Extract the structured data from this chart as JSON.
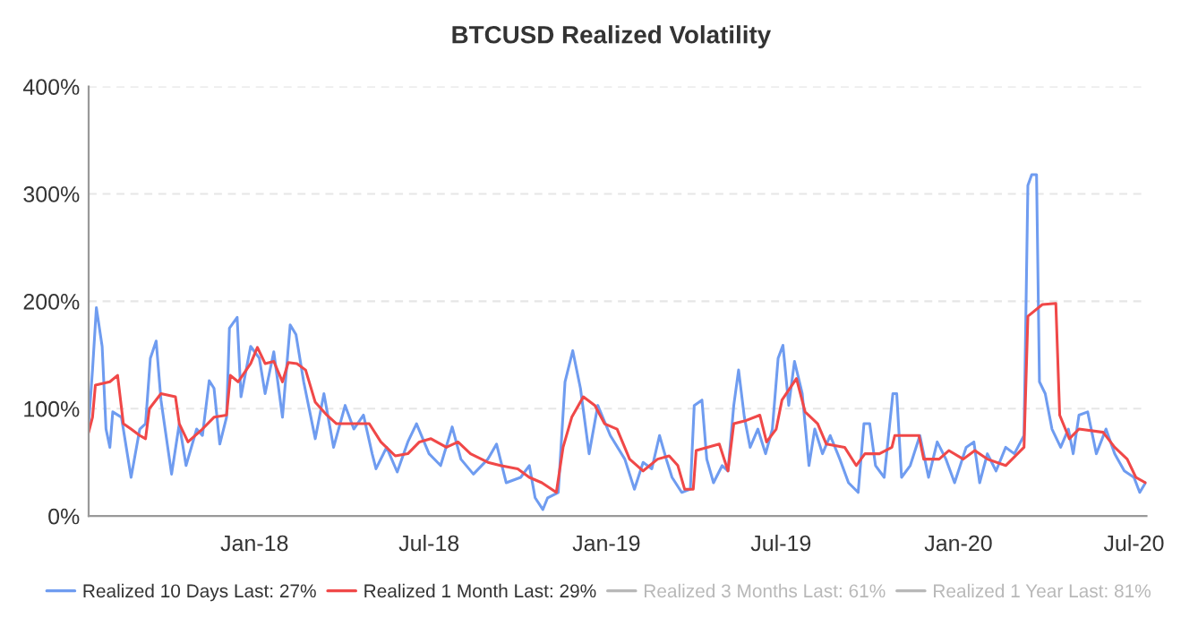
{
  "chart_data": {
    "type": "line",
    "title": "BTCUSD Realized Volatility",
    "xlim": [
      "2017-07-13",
      "2020-07-14"
    ],
    "xticks": [
      {
        "value": "2018-01-01",
        "label": "Jan-18"
      },
      {
        "value": "2018-07-01",
        "label": "Jul-18"
      },
      {
        "value": "2019-01-01",
        "label": "Jan-19"
      },
      {
        "value": "2019-07-01",
        "label": "Jul-19"
      },
      {
        "value": "2020-01-01",
        "label": "Jan-20"
      },
      {
        "value": "2020-07-01",
        "label": "Jul-20"
      }
    ],
    "ylim": [
      0,
      400
    ],
    "yticks": [
      {
        "value": 0,
        "label": "0%"
      },
      {
        "value": 100,
        "label": "100%"
      },
      {
        "value": 200,
        "label": "200%"
      },
      {
        "value": 300,
        "label": "300%"
      },
      {
        "value": 400,
        "label": "400%"
      }
    ],
    "grid": "y",
    "legend": "bottom",
    "line_style": "solid",
    "marker": "none",
    "series": [
      {
        "name": "Realized 10 Days Last: 27%",
        "color": "#6f9cf0",
        "x": [
          "2017-07-13",
          "2017-07-17",
          "2017-07-21",
          "2017-07-27",
          "2017-07-31",
          "2017-08-04",
          "2017-08-07",
          "2017-08-16",
          "2017-08-26",
          "2017-09-04",
          "2017-09-10",
          "2017-09-15",
          "2017-09-21",
          "2017-09-26",
          "2017-10-07",
          "2017-10-15",
          "2017-10-22",
          "2017-11-02",
          "2017-11-08",
          "2017-11-15",
          "2017-11-20",
          "2017-11-26",
          "2017-12-03",
          "2017-12-06",
          "2017-12-14",
          "2017-12-18",
          "2017-12-28",
          "2018-01-06",
          "2018-01-12",
          "2018-01-21",
          "2018-01-30",
          "2018-02-07",
          "2018-02-13",
          "2018-02-21",
          "2018-03-05",
          "2018-03-14",
          "2018-03-24",
          "2018-04-05",
          "2018-04-14",
          "2018-04-24",
          "2018-05-03",
          "2018-05-07",
          "2018-05-18",
          "2018-05-29",
          "2018-06-09",
          "2018-06-18",
          "2018-07-01",
          "2018-07-13",
          "2018-07-25",
          "2018-08-03",
          "2018-08-16",
          "2018-08-31",
          "2018-09-09",
          "2018-09-19",
          "2018-10-04",
          "2018-10-13",
          "2018-10-19",
          "2018-10-27",
          "2018-11-01",
          "2018-11-12",
          "2018-11-19",
          "2018-11-27",
          "2018-12-05",
          "2018-12-14",
          "2018-12-23",
          "2019-01-05",
          "2019-01-20",
          "2019-01-30",
          "2019-02-08",
          "2019-02-17",
          "2019-02-25",
          "2019-03-04",
          "2019-03-10",
          "2019-03-20",
          "2019-03-29",
          "2019-04-02",
          "2019-04-10",
          "2019-04-15",
          "2019-04-22",
          "2019-05-01",
          "2019-05-07",
          "2019-05-13",
          "2019-05-18",
          "2019-05-24",
          "2019-05-30",
          "2019-06-07",
          "2019-06-15",
          "2019-06-22",
          "2019-06-28",
          "2019-07-03",
          "2019-07-09",
          "2019-07-15",
          "2019-07-23",
          "2019-07-30",
          "2019-08-05",
          "2019-08-13",
          "2019-08-21",
          "2019-08-31",
          "2019-09-09",
          "2019-09-19",
          "2019-09-25",
          "2019-10-01",
          "2019-10-07",
          "2019-10-16",
          "2019-10-25",
          "2019-10-29",
          "2019-11-03",
          "2019-11-12",
          "2019-11-22",
          "2019-12-01",
          "2019-12-10",
          "2019-12-19",
          "2019-12-28",
          "2020-01-09",
          "2020-01-17",
          "2020-01-23",
          "2020-01-31",
          "2020-02-09",
          "2020-02-19",
          "2020-02-28",
          "2020-03-09",
          "2020-03-13",
          "2020-03-17",
          "2020-03-22",
          "2020-03-25",
          "2020-03-31",
          "2020-04-07",
          "2020-04-16",
          "2020-04-24",
          "2020-04-29",
          "2020-05-05",
          "2020-05-14",
          "2020-05-23",
          "2020-06-02",
          "2020-06-11",
          "2020-06-21",
          "2020-07-01",
          "2020-07-07",
          "2020-07-13"
        ],
        "values": [
          86,
          136,
          194,
          158,
          81,
          64,
          97,
          92,
          36,
          81,
          86,
          147,
          163,
          108,
          39,
          86,
          47,
          81,
          75,
          126,
          119,
          67,
          92,
          175,
          185,
          111,
          158,
          147,
          114,
          153,
          92,
          178,
          169,
          125,
          72,
          114,
          64,
          103,
          81,
          94,
          58,
          44,
          64,
          41,
          69,
          86,
          58,
          47,
          83,
          53,
          39,
          53,
          67,
          31,
          36,
          47,
          17,
          6,
          17,
          22,
          125,
          154,
          119,
          58,
          103,
          75,
          53,
          25,
          50,
          44,
          75,
          53,
          36,
          22,
          25,
          103,
          108,
          53,
          31,
          47,
          42,
          103,
          136,
          92,
          64,
          81,
          58,
          81,
          147,
          159,
          103,
          144,
          114,
          47,
          81,
          58,
          75,
          53,
          31,
          22,
          86,
          86,
          47,
          36,
          114,
          114,
          36,
          47,
          75,
          36,
          69,
          53,
          31,
          64,
          69,
          31,
          58,
          42,
          64,
          58,
          75,
          308,
          318,
          318,
          125,
          114,
          81,
          64,
          81,
          58,
          94,
          97,
          58,
          81,
          58,
          42,
          36,
          22,
          31
        ]
      },
      {
        "name": "Realized 1 Month Last: 29%",
        "color": "#f04848",
        "x": [
          "2017-07-13",
          "2017-07-17",
          "2017-07-20",
          "2017-08-04",
          "2017-08-12",
          "2017-08-18",
          "2017-08-26",
          "2017-09-04",
          "2017-09-10",
          "2017-09-14",
          "2017-09-26",
          "2017-10-11",
          "2017-10-15",
          "2017-10-24",
          "2017-11-08",
          "2017-11-20",
          "2017-12-03",
          "2017-12-07",
          "2017-12-15",
          "2017-12-28",
          "2018-01-04",
          "2018-01-12",
          "2018-01-21",
          "2018-01-30",
          "2018-02-05",
          "2018-02-14",
          "2018-02-23",
          "2018-03-05",
          "2018-03-17",
          "2018-03-27",
          "2018-04-11",
          "2018-04-30",
          "2018-05-12",
          "2018-05-27",
          "2018-06-09",
          "2018-06-21",
          "2018-07-03",
          "2018-07-19",
          "2018-07-31",
          "2018-08-13",
          "2018-08-31",
          "2018-09-13",
          "2018-10-01",
          "2018-10-13",
          "2018-10-26",
          "2018-11-10",
          "2018-11-17",
          "2018-11-26",
          "2018-12-08",
          "2018-12-20",
          "2018-12-30",
          "2019-01-12",
          "2019-01-25",
          "2019-02-08",
          "2019-02-23",
          "2019-03-07",
          "2019-03-16",
          "2019-03-23",
          "2019-04-01",
          "2019-04-04",
          "2019-04-28",
          "2019-05-07",
          "2019-05-13",
          "2019-05-26",
          "2019-06-09",
          "2019-06-16",
          "2019-06-26",
          "2019-07-02",
          "2019-07-17",
          "2019-07-26",
          "2019-08-08",
          "2019-08-17",
          "2019-09-05",
          "2019-09-17",
          "2019-09-26",
          "2019-10-11",
          "2019-10-24",
          "2019-10-27",
          "2019-11-21",
          "2019-11-26",
          "2019-12-12",
          "2019-12-22",
          "2020-01-06",
          "2020-01-18",
          "2020-01-31",
          "2020-02-19",
          "2020-03-09",
          "2020-03-13",
          "2020-03-28",
          "2020-04-11",
          "2020-04-15",
          "2020-04-25",
          "2020-05-05",
          "2020-05-30",
          "2020-06-11",
          "2020-06-24",
          "2020-07-03",
          "2020-07-13"
        ],
        "values": [
          78,
          92,
          122,
          125,
          131,
          86,
          81,
          75,
          72,
          100,
          114,
          111,
          86,
          69,
          81,
          92,
          94,
          131,
          125,
          142,
          157,
          142,
          144,
          125,
          143,
          142,
          136,
          106,
          94,
          86,
          86,
          86,
          69,
          56,
          58,
          69,
          72,
          64,
          69,
          58,
          50,
          47,
          44,
          36,
          31,
          22,
          64,
          92,
          111,
          103,
          86,
          81,
          53,
          42,
          53,
          56,
          47,
          25,
          25,
          61,
          67,
          42,
          86,
          89,
          94,
          69,
          81,
          108,
          128,
          97,
          86,
          67,
          64,
          47,
          58,
          58,
          64,
          75,
          75,
          53,
          53,
          61,
          53,
          61,
          53,
          47,
          64,
          186,
          197,
          198,
          94,
          72,
          81,
          78,
          64,
          53,
          36,
          31
        ]
      },
      {
        "name": "Realized 3 Months Last: 61%",
        "color": "#b8b8b8"
      },
      {
        "name": "Realized 1 Year Last: 81%",
        "color": "#b8b8b8"
      }
    ]
  }
}
